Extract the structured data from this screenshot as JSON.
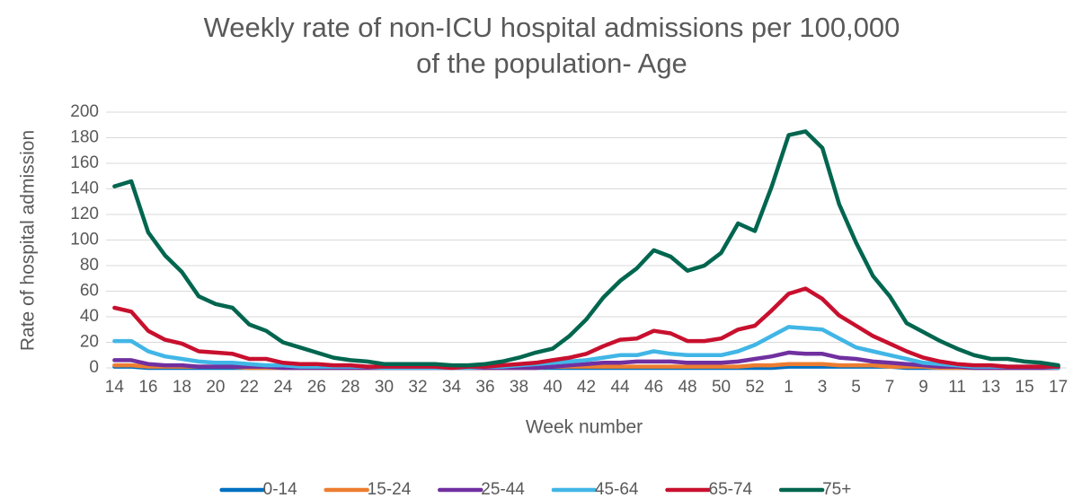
{
  "chart_data": {
    "type": "line",
    "title": [
      "Weekly rate of non-ICU hospital admissions per 100,000",
      "of the population- Age"
    ],
    "x_label": "Week number",
    "y_label": "Rate of hospital admission",
    "categories": [
      "14",
      null,
      "16",
      null,
      "18",
      null,
      "20",
      null,
      "22",
      null,
      "24",
      null,
      "26",
      null,
      "28",
      null,
      "30",
      null,
      "32",
      null,
      "34",
      null,
      "36",
      null,
      "38",
      null,
      "40",
      null,
      "42",
      null,
      "44",
      null,
      "46",
      null,
      "48",
      null,
      "50",
      null,
      "52",
      null,
      "1",
      null,
      "3",
      null,
      "5",
      null,
      "7",
      null,
      "9",
      null,
      "11",
      null,
      "13",
      null,
      "15",
      null,
      "17"
    ],
    "ylim": [
      0,
      200
    ],
    "yticks": [
      0,
      20,
      40,
      60,
      80,
      100,
      120,
      140,
      160,
      180,
      200
    ],
    "grid": true,
    "legend": "bottom",
    "series": [
      {
        "name": "0-14",
        "color": "#0070c0",
        "values": [
          1,
          1,
          0,
          0,
          0,
          0,
          0,
          0,
          0,
          0,
          0,
          0,
          0,
          0,
          0,
          0,
          0,
          0,
          0,
          0,
          0,
          0,
          0,
          0,
          0,
          0,
          0,
          0,
          0,
          0,
          0,
          0,
          0,
          0,
          0,
          0,
          0,
          0,
          0,
          0,
          1,
          1,
          1,
          1,
          1,
          1,
          1,
          0,
          0,
          0,
          0,
          0,
          0,
          0,
          0,
          0,
          0
        ]
      },
      {
        "name": "15-24",
        "color": "#ed7d31",
        "values": [
          2,
          2,
          1,
          1,
          1,
          1,
          1,
          1,
          0,
          0,
          0,
          0,
          0,
          0,
          0,
          0,
          0,
          0,
          0,
          0,
          0,
          0,
          0,
          0,
          0,
          0,
          1,
          1,
          1,
          1,
          1,
          1,
          1,
          1,
          1,
          1,
          1,
          1,
          2,
          2,
          3,
          3,
          3,
          2,
          2,
          2,
          1,
          1,
          1,
          0,
          0,
          0,
          0,
          0,
          0,
          0,
          0
        ]
      },
      {
        "name": "25-44",
        "color": "#7030a0",
        "values": [
          6,
          6,
          3,
          2,
          2,
          1,
          1,
          1,
          1,
          1,
          0,
          0,
          0,
          0,
          0,
          0,
          0,
          0,
          0,
          0,
          0,
          0,
          0,
          0,
          0,
          0,
          1,
          2,
          3,
          4,
          4,
          5,
          5,
          5,
          4,
          4,
          4,
          5,
          7,
          9,
          12,
          11,
          11,
          8,
          7,
          5,
          4,
          3,
          2,
          1,
          1,
          0,
          0,
          0,
          0,
          0,
          0
        ]
      },
      {
        "name": "45-64",
        "color": "#41b6e6",
        "values": [
          21,
          21,
          13,
          9,
          7,
          5,
          4,
          4,
          3,
          2,
          2,
          1,
          1,
          1,
          1,
          1,
          0,
          0,
          0,
          0,
          0,
          0,
          1,
          1,
          2,
          3,
          4,
          5,
          6,
          8,
          10,
          10,
          13,
          11,
          10,
          10,
          10,
          13,
          18,
          25,
          32,
          31,
          30,
          23,
          16,
          13,
          10,
          7,
          4,
          3,
          2,
          1,
          1,
          1,
          1,
          1,
          0
        ]
      },
      {
        "name": "65-74",
        "color": "#c8102e",
        "values": [
          47,
          44,
          29,
          22,
          19,
          13,
          12,
          11,
          7,
          7,
          4,
          3,
          3,
          2,
          2,
          1,
          1,
          1,
          1,
          1,
          0,
          1,
          1,
          2,
          3,
          4,
          6,
          8,
          11,
          17,
          22,
          23,
          29,
          27,
          21,
          21,
          23,
          30,
          33,
          45,
          58,
          62,
          54,
          41,
          33,
          25,
          19,
          13,
          8,
          5,
          3,
          2,
          2,
          1,
          1,
          1,
          1
        ]
      },
      {
        "name": "75+",
        "color": "#00664f",
        "values": [
          142,
          146,
          106,
          88,
          75,
          56,
          50,
          47,
          34,
          29,
          20,
          16,
          12,
          8,
          6,
          5,
          3,
          3,
          3,
          3,
          2,
          2,
          3,
          5,
          8,
          12,
          15,
          25,
          38,
          55,
          68,
          78,
          92,
          87,
          76,
          80,
          90,
          113,
          107,
          142,
          182,
          185,
          172,
          128,
          98,
          72,
          56,
          35,
          28,
          21,
          15,
          10,
          7,
          7,
          5,
          4,
          2
        ]
      }
    ]
  }
}
